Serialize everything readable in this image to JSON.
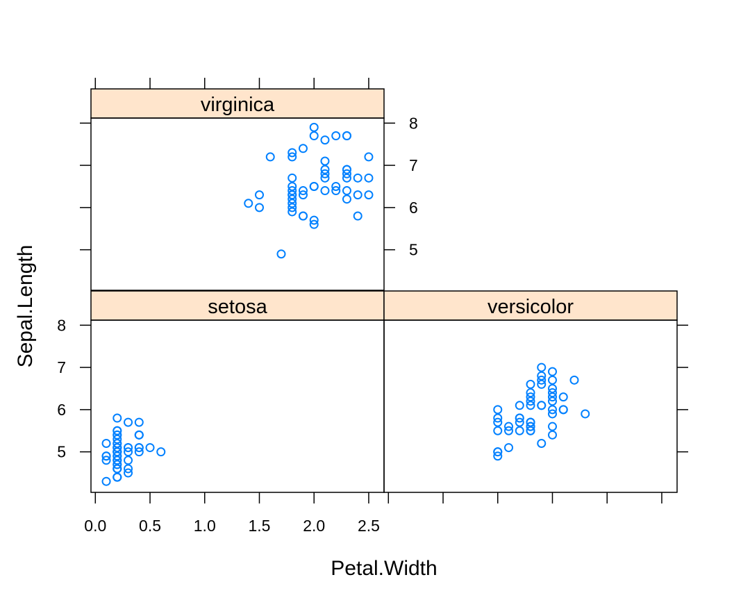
{
  "chart_data": {
    "type": "scatter",
    "xlabel": "Petal.Width",
    "ylabel": "Sepal.Length",
    "xlim": [
      -0.04,
      2.64
    ],
    "ylim": [
      4.04,
      8.12
    ],
    "x_ticks": [
      0.0,
      0.5,
      1.0,
      1.5,
      2.0,
      2.5
    ],
    "x_tick_labels": [
      "0.0",
      "0.5",
      "1.0",
      "1.5",
      "2.0",
      "2.5"
    ],
    "y_ticks": [
      5,
      6,
      7,
      8
    ],
    "y_tick_labels": [
      "5",
      "6",
      "7",
      "8"
    ],
    "grid": false,
    "point_color": "#0080ff",
    "strip_color": "#ffe5cc",
    "panels": [
      {
        "name": "setosa",
        "points": [
          [
            0.2,
            5.1
          ],
          [
            0.2,
            4.9
          ],
          [
            0.2,
            4.7
          ],
          [
            0.2,
            4.6
          ],
          [
            0.2,
            5.0
          ],
          [
            0.4,
            5.4
          ],
          [
            0.3,
            4.6
          ],
          [
            0.2,
            5.0
          ],
          [
            0.2,
            4.4
          ],
          [
            0.1,
            4.9
          ],
          [
            0.2,
            5.4
          ],
          [
            0.2,
            4.8
          ],
          [
            0.1,
            4.8
          ],
          [
            0.1,
            4.3
          ],
          [
            0.2,
            5.8
          ],
          [
            0.4,
            5.7
          ],
          [
            0.4,
            5.4
          ],
          [
            0.3,
            5.1
          ],
          [
            0.3,
            5.7
          ],
          [
            0.3,
            5.1
          ],
          [
            0.2,
            5.4
          ],
          [
            0.4,
            5.1
          ],
          [
            0.2,
            4.6
          ],
          [
            0.5,
            5.1
          ],
          [
            0.2,
            4.8
          ],
          [
            0.2,
            5.0
          ],
          [
            0.4,
            5.0
          ],
          [
            0.2,
            5.2
          ],
          [
            0.2,
            5.2
          ],
          [
            0.2,
            4.7
          ],
          [
            0.2,
            4.8
          ],
          [
            0.4,
            5.4
          ],
          [
            0.1,
            5.2
          ],
          [
            0.2,
            5.5
          ],
          [
            0.2,
            4.9
          ],
          [
            0.2,
            5.0
          ],
          [
            0.2,
            5.5
          ],
          [
            0.1,
            4.9
          ],
          [
            0.2,
            4.4
          ],
          [
            0.2,
            5.1
          ],
          [
            0.3,
            5.0
          ],
          [
            0.3,
            4.5
          ],
          [
            0.2,
            4.4
          ],
          [
            0.6,
            5.0
          ],
          [
            0.4,
            5.1
          ],
          [
            0.3,
            4.8
          ],
          [
            0.2,
            5.1
          ],
          [
            0.2,
            4.6
          ],
          [
            0.2,
            5.3
          ],
          [
            0.2,
            5.0
          ]
        ]
      },
      {
        "name": "versicolor",
        "points": [
          [
            1.4,
            7.0
          ],
          [
            1.5,
            6.4
          ],
          [
            1.5,
            6.9
          ],
          [
            1.3,
            5.5
          ],
          [
            1.5,
            6.5
          ],
          [
            1.3,
            5.7
          ],
          [
            1.6,
            6.3
          ],
          [
            1.0,
            4.9
          ],
          [
            1.3,
            6.6
          ],
          [
            1.4,
            5.2
          ],
          [
            1.0,
            5.0
          ],
          [
            1.5,
            5.9
          ],
          [
            1.0,
            6.0
          ],
          [
            1.4,
            6.1
          ],
          [
            1.3,
            5.6
          ],
          [
            1.4,
            6.7
          ],
          [
            1.5,
            5.6
          ],
          [
            1.0,
            5.8
          ],
          [
            1.5,
            6.2
          ],
          [
            1.1,
            5.6
          ],
          [
            1.8,
            5.9
          ],
          [
            1.3,
            6.1
          ],
          [
            1.5,
            6.3
          ],
          [
            1.2,
            6.1
          ],
          [
            1.3,
            6.4
          ],
          [
            1.4,
            6.6
          ],
          [
            1.4,
            6.8
          ],
          [
            1.7,
            6.7
          ],
          [
            1.5,
            6.0
          ],
          [
            1.0,
            5.7
          ],
          [
            1.1,
            5.5
          ],
          [
            1.0,
            5.5
          ],
          [
            1.2,
            5.8
          ],
          [
            1.6,
            6.0
          ],
          [
            1.5,
            5.4
          ],
          [
            1.6,
            6.0
          ],
          [
            1.5,
            6.7
          ],
          [
            1.3,
            6.3
          ],
          [
            1.3,
            5.6
          ],
          [
            1.3,
            5.5
          ],
          [
            1.2,
            5.5
          ],
          [
            1.4,
            6.1
          ],
          [
            1.2,
            5.8
          ],
          [
            1.0,
            5.0
          ],
          [
            1.3,
            5.6
          ],
          [
            1.2,
            5.7
          ],
          [
            1.3,
            5.7
          ],
          [
            1.3,
            6.2
          ],
          [
            1.1,
            5.1
          ],
          [
            1.3,
            5.7
          ]
        ]
      },
      {
        "name": "virginica",
        "points": [
          [
            2.5,
            6.3
          ],
          [
            1.9,
            5.8
          ],
          [
            2.1,
            7.1
          ],
          [
            1.8,
            6.3
          ],
          [
            2.2,
            6.5
          ],
          [
            2.1,
            7.6
          ],
          [
            1.7,
            4.9
          ],
          [
            1.8,
            7.3
          ],
          [
            1.8,
            6.7
          ],
          [
            2.5,
            7.2
          ],
          [
            2.0,
            6.5
          ],
          [
            1.9,
            6.4
          ],
          [
            2.1,
            6.8
          ],
          [
            2.0,
            5.7
          ],
          [
            2.4,
            5.8
          ],
          [
            2.3,
            6.4
          ],
          [
            1.8,
            6.5
          ],
          [
            2.2,
            7.7
          ],
          [
            2.3,
            7.7
          ],
          [
            1.5,
            6.0
          ],
          [
            2.3,
            6.9
          ],
          [
            2.0,
            5.6
          ],
          [
            2.0,
            7.7
          ],
          [
            1.8,
            6.3
          ],
          [
            2.1,
            6.7
          ],
          [
            1.8,
            7.2
          ],
          [
            1.8,
            6.2
          ],
          [
            1.8,
            6.1
          ],
          [
            2.1,
            6.4
          ],
          [
            1.6,
            7.2
          ],
          [
            1.9,
            7.4
          ],
          [
            2.0,
            7.9
          ],
          [
            2.2,
            6.4
          ],
          [
            1.5,
            6.3
          ],
          [
            1.4,
            6.1
          ],
          [
            2.3,
            7.7
          ],
          [
            2.4,
            6.3
          ],
          [
            1.8,
            6.4
          ],
          [
            1.8,
            6.0
          ],
          [
            2.1,
            6.9
          ],
          [
            2.4,
            6.7
          ],
          [
            2.3,
            6.9
          ],
          [
            1.9,
            5.8
          ],
          [
            2.3,
            6.8
          ],
          [
            2.5,
            6.7
          ],
          [
            2.3,
            6.7
          ],
          [
            1.9,
            6.3
          ],
          [
            2.0,
            6.5
          ],
          [
            2.3,
            6.2
          ],
          [
            1.8,
            5.9
          ]
        ]
      }
    ]
  }
}
